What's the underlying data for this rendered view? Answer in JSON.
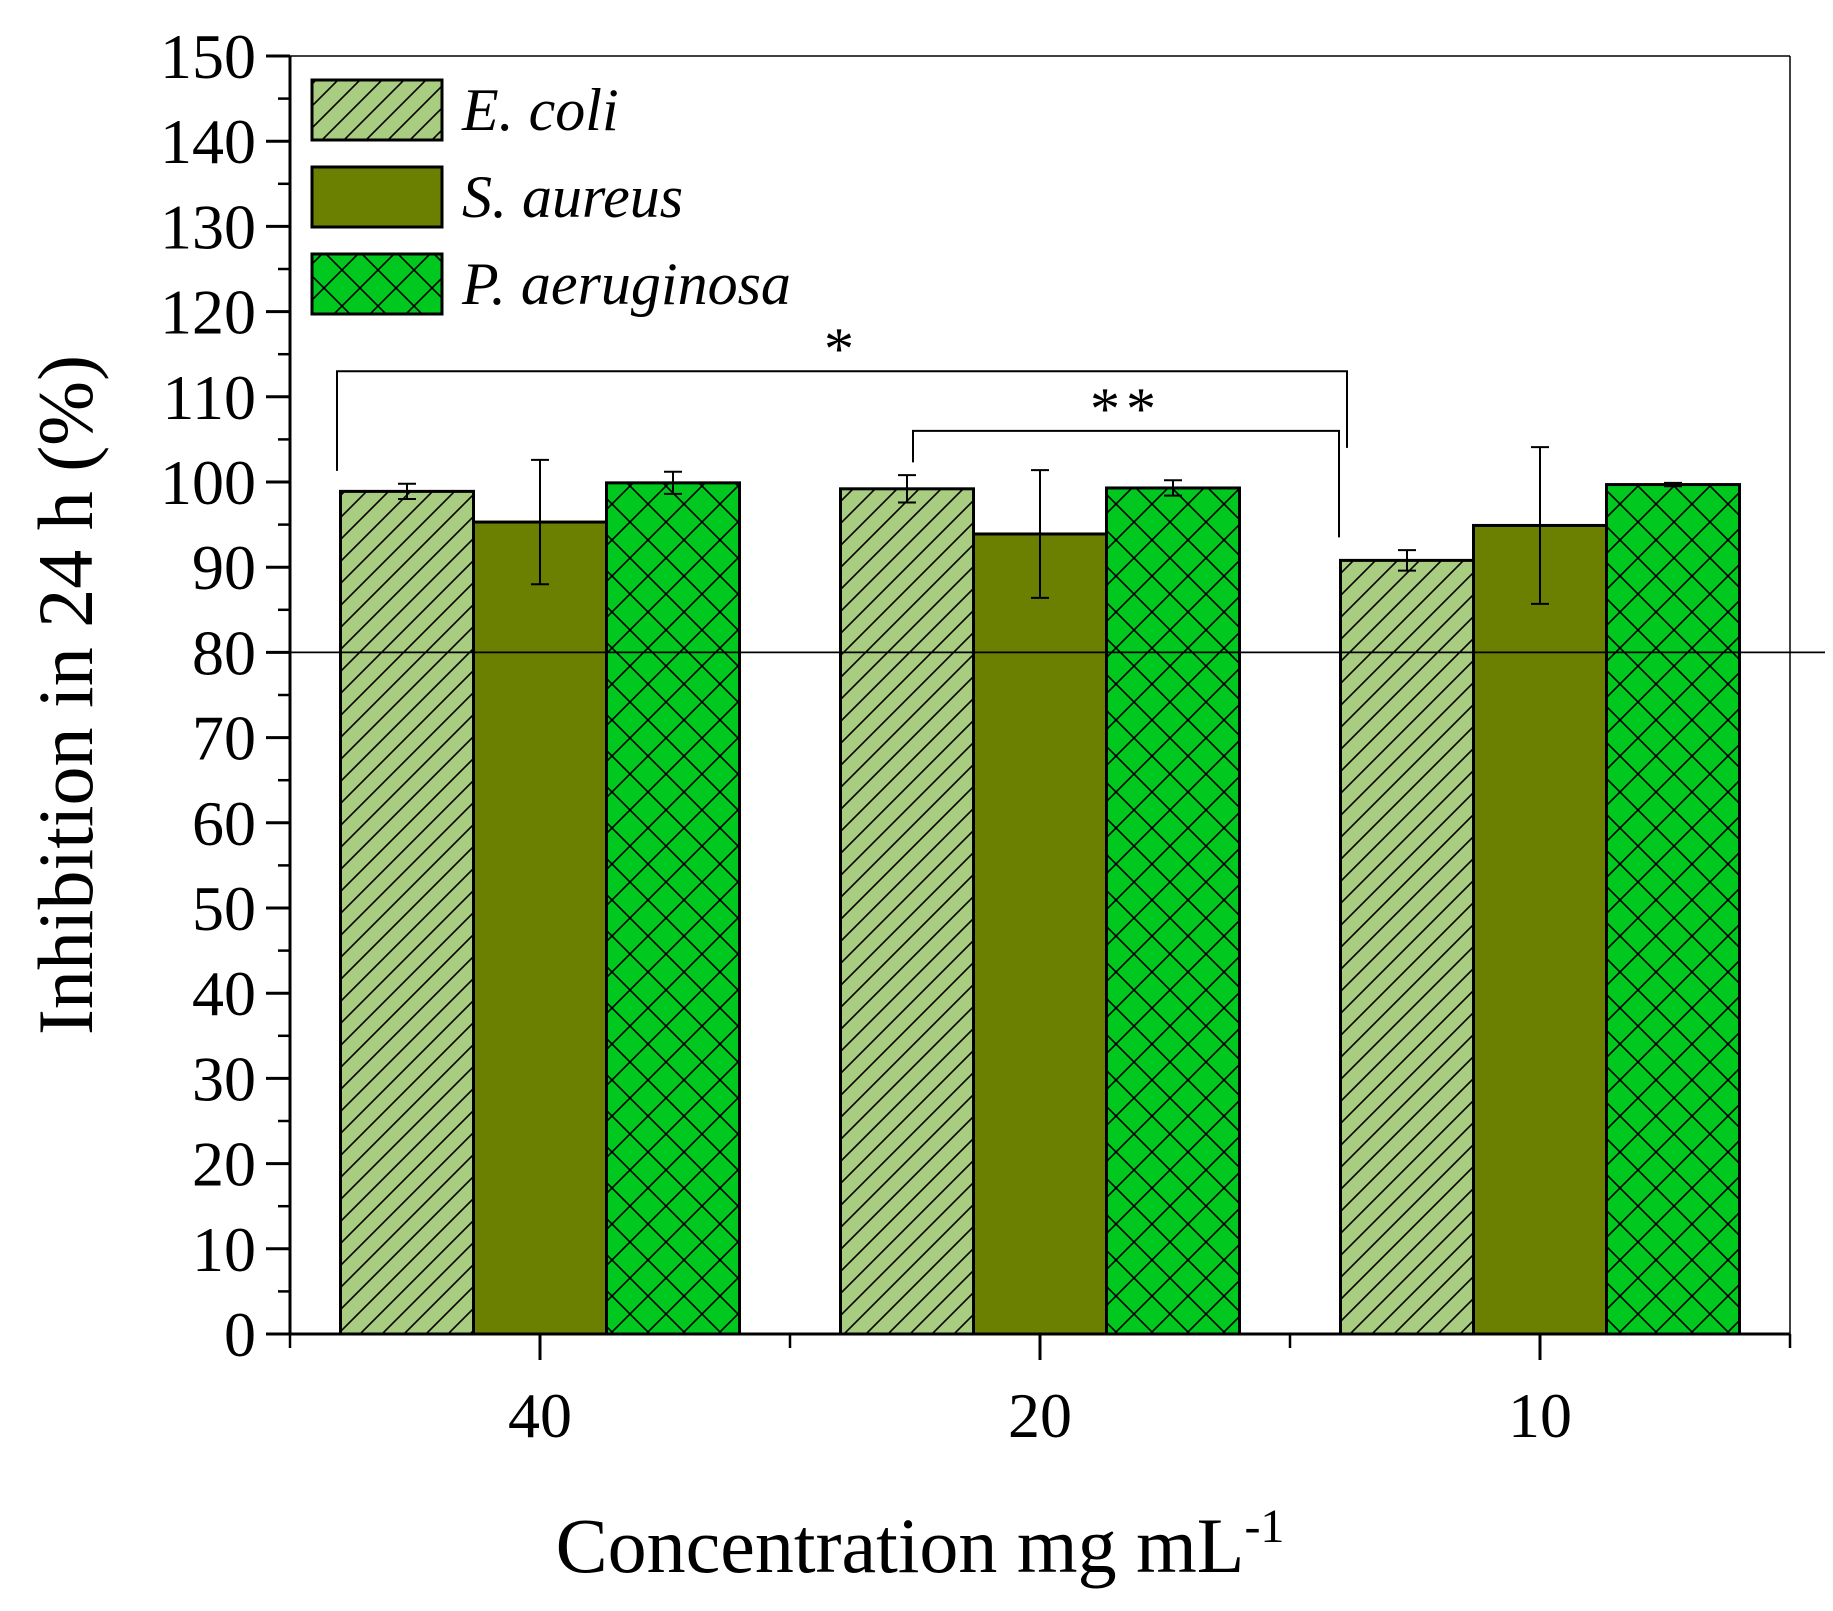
{
  "chart_data": {
    "type": "bar",
    "xlabel": "Concentration mg mL",
    "xlabel_superscript": "-1",
    "ylabel": "Inhibition in 24 h (%)",
    "ylim": [
      0,
      150
    ],
    "ytick_step": 10,
    "ytick_labels": [
      "0",
      "10",
      "20",
      "30",
      "40",
      "50",
      "60",
      "70",
      "80",
      "90",
      "100",
      "110",
      "120",
      "130",
      "140",
      "150"
    ],
    "categories": [
      "40",
      "20",
      "10"
    ],
    "series": [
      {
        "name": "E. coli",
        "values": [
          98.9,
          99.2,
          90.8
        ],
        "errors": [
          0.9,
          1.6,
          1.2
        ],
        "color": "#a8cc80",
        "pattern": "diagonal-hatch"
      },
      {
        "name": "S. aureus",
        "values": [
          95.3,
          93.9,
          94.9
        ],
        "errors": [
          7.3,
          7.5,
          9.2
        ],
        "color": "#6b7f00",
        "pattern": "solid"
      },
      {
        "name": "P. aeruginosa",
        "values": [
          99.9,
          99.3,
          99.7
        ],
        "errors": [
          1.3,
          0.9,
          0.2
        ],
        "color": "#00c81e",
        "pattern": "cross-hatch"
      }
    ],
    "reference_line": 80,
    "legend_position": "top-left",
    "significance": [
      {
        "label": "*",
        "from_category": 0,
        "from_series": 0,
        "to_category": 2,
        "to_series": 0,
        "level": 113
      },
      {
        "label": "**",
        "from_category": 1,
        "from_series": 0,
        "to_category": 2,
        "to_series": 0,
        "level": 106
      }
    ]
  }
}
